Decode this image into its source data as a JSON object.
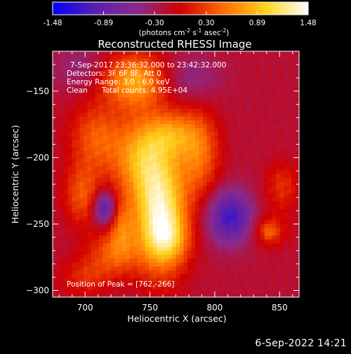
{
  "colorbar": {
    "ticks": [
      "-1.48",
      "-0.89",
      "-0.30",
      "0.30",
      "0.89",
      "1.48"
    ],
    "tick_values": [
      -1.48,
      -0.89,
      -0.3,
      0.3,
      0.89,
      1.48
    ],
    "range": [
      -1.48,
      1.48
    ],
    "units_parts": [
      "(photons cm",
      "-2",
      " s",
      "-1",
      " asec",
      "-2",
      ")"
    ]
  },
  "chart_data": {
    "type": "heatmap",
    "title": "Reconstructed RHESSI Image",
    "xlabel": "Heliocentric X (arcsec)",
    "ylabel": "Heliocentric Y (arcsec)",
    "xlim": [
      675,
      865
    ],
    "ylim": [
      -305,
      -120
    ],
    "x_ticks": [
      700,
      750,
      800,
      850
    ],
    "y_ticks": [
      -150,
      -200,
      -250,
      -300
    ],
    "grid": false,
    "colormap": [
      "#0000ff",
      "#5a1fb0",
      "#8b2a8a",
      "#d00000",
      "#ff6a00",
      "#ffd21e",
      "#ffffff"
    ],
    "annotations": [
      "7-Sep-2017 23:36:32.000 to 23:42:32.000",
      "Detectors: 3F 6F 8F, Att 0",
      "Energy Range: 3.0 - 6.0 keV",
      "Clean",
      "Total counts: 4.95E+04",
      "Position of Peak = [762,-266]"
    ],
    "peak": [
      762,
      -266
    ],
    "sources": [
      {
        "x": 758,
        "y": -245,
        "sx": 14,
        "sy": 28,
        "amp": 1.45
      },
      {
        "x": 765,
        "y": -262,
        "sx": 11,
        "sy": 12,
        "amp": 0.45
      },
      {
        "x": 745,
        "y": -200,
        "sx": 17,
        "sy": 22,
        "amp": 0.95
      },
      {
        "x": 738,
        "y": -142,
        "sx": 17,
        "sy": 14,
        "amp": 0.95
      },
      {
        "x": 768,
        "y": -182,
        "sx": 14,
        "sy": 12,
        "amp": 0.6
      },
      {
        "x": 788,
        "y": -198,
        "sx": 11,
        "sy": 22,
        "amp": 0.65
      },
      {
        "x": 708,
        "y": -185,
        "sx": 14,
        "sy": 18,
        "amp": 0.55
      },
      {
        "x": 698,
        "y": -228,
        "sx": 10,
        "sy": 16,
        "amp": 0.55
      },
      {
        "x": 722,
        "y": -272,
        "sx": 14,
        "sy": 12,
        "amp": 0.55
      },
      {
        "x": 728,
        "y": -252,
        "sx": 7,
        "sy": 14,
        "amp": 0.5
      },
      {
        "x": 700,
        "y": -290,
        "sx": 14,
        "sy": 10,
        "amp": 0.35
      },
      {
        "x": 715,
        "y": -238,
        "sx": 6,
        "sy": 9,
        "amp": -0.9
      },
      {
        "x": 852,
        "y": -222,
        "sx": 9,
        "sy": 13,
        "amp": 0.38
      },
      {
        "x": 842,
        "y": -255,
        "sx": 10,
        "sy": 9,
        "amp": 0.38
      },
      {
        "x": 842,
        "y": -256,
        "sx": 4,
        "sy": 4,
        "amp": 0.3
      },
      {
        "x": 812,
        "y": -245,
        "sx": 12,
        "sy": 14,
        "amp": -0.95
      },
      {
        "x": 782,
        "y": -140,
        "sx": 16,
        "sy": 12,
        "amp": -0.3
      },
      {
        "x": 695,
        "y": -132,
        "sx": 15,
        "sy": 12,
        "amp": -0.25
      }
    ],
    "background": -0.18
  },
  "footer": {
    "stamp": "6-Sep-2022 14:21"
  }
}
